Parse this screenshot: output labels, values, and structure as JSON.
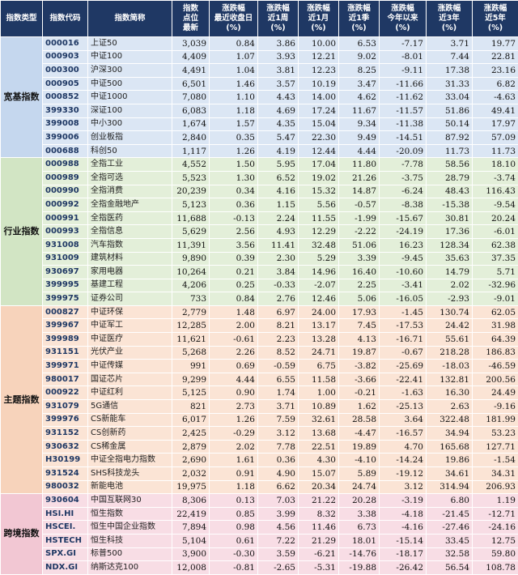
{
  "headers": [
    [
      "指数类型"
    ],
    [
      "指数代码"
    ],
    [
      "指数简称"
    ],
    [
      "指数",
      "点位",
      "最新"
    ],
    [
      "涨跌幅",
      "最近收盘日",
      "(%)"
    ],
    [
      "涨跌幅",
      "近1周",
      "(%)"
    ],
    [
      "涨跌幅",
      "近1月",
      "(%)"
    ],
    [
      "涨跌幅",
      "近1季",
      "(%)"
    ],
    [
      "涨跌幅",
      "今年以来",
      "(%)"
    ],
    [
      "涨跌幅",
      "近3年",
      "(%)"
    ],
    [
      "涨跌幅",
      "近5年",
      "(%)"
    ]
  ],
  "colors": {
    "header_bg": "#1f3864",
    "broad": "#dbe6f4",
    "industry": "#e3efd9",
    "theme": "#fbe4d5",
    "cross": "#f8dde5"
  },
  "groups": [
    {
      "name": "宽基指数",
      "rows": [
        [
          "000016",
          "上证50",
          "3,039",
          "0.84",
          "3.86",
          "10.00",
          "6.53",
          "-7.17",
          "3.71",
          "19.77"
        ],
        [
          "000903",
          "中证100",
          "4,409",
          "1.07",
          "3.93",
          "12.21",
          "9.02",
          "-8.01",
          "7.44",
          "22.81"
        ],
        [
          "000300",
          "沪深300",
          "4,491",
          "1.04",
          "3.81",
          "12.23",
          "8.25",
          "-9.11",
          "17.38",
          "23.16"
        ],
        [
          "000905",
          "中证500",
          "6,501",
          "1.46",
          "3.57",
          "10.19",
          "3.47",
          "-11.66",
          "31.33",
          "6.82"
        ],
        [
          "000852",
          "中证1000",
          "7,080",
          "1.10",
          "4.43",
          "14.00",
          "4.62",
          "-11.62",
          "33.04",
          "-4.63"
        ],
        [
          "399330",
          "深证100",
          "6,083",
          "1.18",
          "4.69",
          "17.24",
          "11.67",
          "-11.57",
          "51.86",
          "49.41"
        ],
        [
          "399008",
          "中小300",
          "1,674",
          "1.57",
          "4.35",
          "15.04",
          "9.34",
          "-11.38",
          "50.14",
          "17.97"
        ],
        [
          "399006",
          "创业板指",
          "2,840",
          "0.35",
          "5.47",
          "22.30",
          "9.49",
          "-14.51",
          "87.92",
          "57.09"
        ],
        [
          "000688",
          "科创50",
          "1,117",
          "1.26",
          "4.19",
          "12.44",
          "4.44",
          "-20.09",
          "11.73",
          "11.73"
        ]
      ]
    },
    {
      "name": "行业指数",
      "rows": [
        [
          "000988",
          "全指工业",
          "4,552",
          "1.50",
          "5.95",
          "17.04",
          "11.80",
          "-7.78",
          "58.56",
          "18.10"
        ],
        [
          "000989",
          "全指可选",
          "5,523",
          "1.30",
          "6.52",
          "19.02",
          "21.26",
          "-3.75",
          "28.79",
          "-3.74"
        ],
        [
          "000990",
          "全指消费",
          "20,239",
          "0.34",
          "4.16",
          "15.32",
          "14.87",
          "-6.24",
          "48.43",
          "116.43"
        ],
        [
          "000992",
          "全指金融地产",
          "5,123",
          "0.36",
          "1.15",
          "5.56",
          "-0.57",
          "-8.38",
          "-15.38",
          "-9.54"
        ],
        [
          "000991",
          "全指医药",
          "11,688",
          "-0.13",
          "2.24",
          "11.55",
          "-1.99",
          "-15.67",
          "30.81",
          "20.24"
        ],
        [
          "000993",
          "全指信息",
          "5,629",
          "2.56",
          "4.93",
          "12.29",
          "-2.22",
          "-24.19",
          "17.36",
          "-6.01"
        ],
        [
          "931008",
          "汽车指数",
          "11,391",
          "3.56",
          "11.41",
          "32.48",
          "51.06",
          "16.23",
          "128.34",
          "62.38"
        ],
        [
          "931009",
          "建筑材料",
          "9,890",
          "0.39",
          "2.30",
          "5.29",
          "3.39",
          "-9.45",
          "35.63",
          "37.35"
        ],
        [
          "930697",
          "家用电器",
          "10,264",
          "0.21",
          "3.84",
          "14.96",
          "16.40",
          "-10.60",
          "14.79",
          "5.71"
        ],
        [
          "399995",
          "基建工程",
          "4,206",
          "0.25",
          "-0.33",
          "-2.07",
          "2.25",
          "-3.41",
          "2.02",
          "-32.96"
        ],
        [
          "399975",
          "证券公司",
          "733",
          "0.84",
          "2.76",
          "12.46",
          "5.06",
          "-16.05",
          "-2.93",
          "-9.01"
        ]
      ]
    },
    {
      "name": "主题指数",
      "rows": [
        [
          "000827",
          "中证环保",
          "2,779",
          "1.48",
          "6.97",
          "24.00",
          "17.93",
          "-1.45",
          "130.74",
          "62.05"
        ],
        [
          "399967",
          "中证军工",
          "12,285",
          "2.00",
          "8.21",
          "13.17",
          "7.45",
          "-17.53",
          "24.42",
          "31.98"
        ],
        [
          "399989",
          "中证医疗",
          "11,621",
          "-0.61",
          "2.23",
          "13.28",
          "4.13",
          "-16.71",
          "55.61",
          "64.39"
        ],
        [
          "931151",
          "光伏产业",
          "5,268",
          "2.26",
          "8.52",
          "24.71",
          "19.87",
          "-0.67",
          "218.28",
          "186.83"
        ],
        [
          "399971",
          "中证传媒",
          "991",
          "0.69",
          "-0.59",
          "6.75",
          "-3.82",
          "-25.69",
          "-18.03",
          "-46.59"
        ],
        [
          "980017",
          "国证芯片",
          "9,299",
          "4.44",
          "6.55",
          "11.58",
          "-3.66",
          "-22.41",
          "132.81",
          "200.56"
        ],
        [
          "000922",
          "中证红利",
          "5,125",
          "0.90",
          "1.74",
          "1.00",
          "-0.21",
          "-1.63",
          "16.30",
          "24.49"
        ],
        [
          "931079",
          "5G通信",
          "821",
          "2.73",
          "3.71",
          "10.89",
          "1.62",
          "-25.13",
          "2.63",
          "-9.16"
        ],
        [
          "399976",
          "CS新能车",
          "6,017",
          "1.26",
          "7.59",
          "32.61",
          "28.58",
          "3.64",
          "322.48",
          "181.99"
        ],
        [
          "931152",
          "CS创新药",
          "2,425",
          "-0.29",
          "3.12",
          "13.68",
          "-4.47",
          "-16.57",
          "34.94",
          "53.23"
        ],
        [
          "930632",
          "CS稀金属",
          "2,879",
          "2.02",
          "7.78",
          "22.51",
          "19.89",
          "4.70",
          "165.68",
          "127.71"
        ],
        [
          "H30199",
          "中证全指电力指数",
          "2,690",
          "1.61",
          "0.36",
          "4.30",
          "-4.10",
          "-14.24",
          "19.86",
          "-1.54"
        ],
        [
          "931524",
          "SHS科技龙头",
          "2,032",
          "0.91",
          "4.90",
          "15.07",
          "5.89",
          "-19.12",
          "34.61",
          "34.31"
        ],
        [
          "980032",
          "新能电池",
          "19,975",
          "1.18",
          "6.62",
          "20.34",
          "24.74",
          "3.12",
          "314.94",
          "206.93"
        ]
      ]
    },
    {
      "name": "跨境指数",
      "rows": [
        [
          "930604",
          "中国互联网30",
          "8,306",
          "0.13",
          "7.03",
          "21.22",
          "20.28",
          "-3.19",
          "6.80",
          "1.19"
        ],
        [
          "HSI.HI",
          "恒生指数",
          "22,419",
          "0.85",
          "3.99",
          "8.32",
          "3.38",
          "-4.18",
          "-21.45",
          "-12.71"
        ],
        [
          "HSCEI.",
          "恒生中国企业指数",
          "7,894",
          "0.98",
          "4.56",
          "11.46",
          "6.73",
          "-4.16",
          "-27.46",
          "-24.16"
        ],
        [
          "HSTECH",
          "恒生科技",
          "5,104",
          "0.61",
          "7.22",
          "21.29",
          "18.01",
          "-15.14",
          "33.45",
          "12.75"
        ],
        [
          "SPX.GI",
          "标普500",
          "3,900",
          "-0.30",
          "3.59",
          "-6.21",
          "-14.76",
          "-18.17",
          "32.58",
          "59.80"
        ],
        [
          "NDX.GI",
          "纳斯达克100",
          "12,008",
          "-0.81",
          "-2.65",
          "-5.31",
          "-19.88",
          "-26.42",
          "56.54",
          "108.78"
        ]
      ]
    }
  ]
}
